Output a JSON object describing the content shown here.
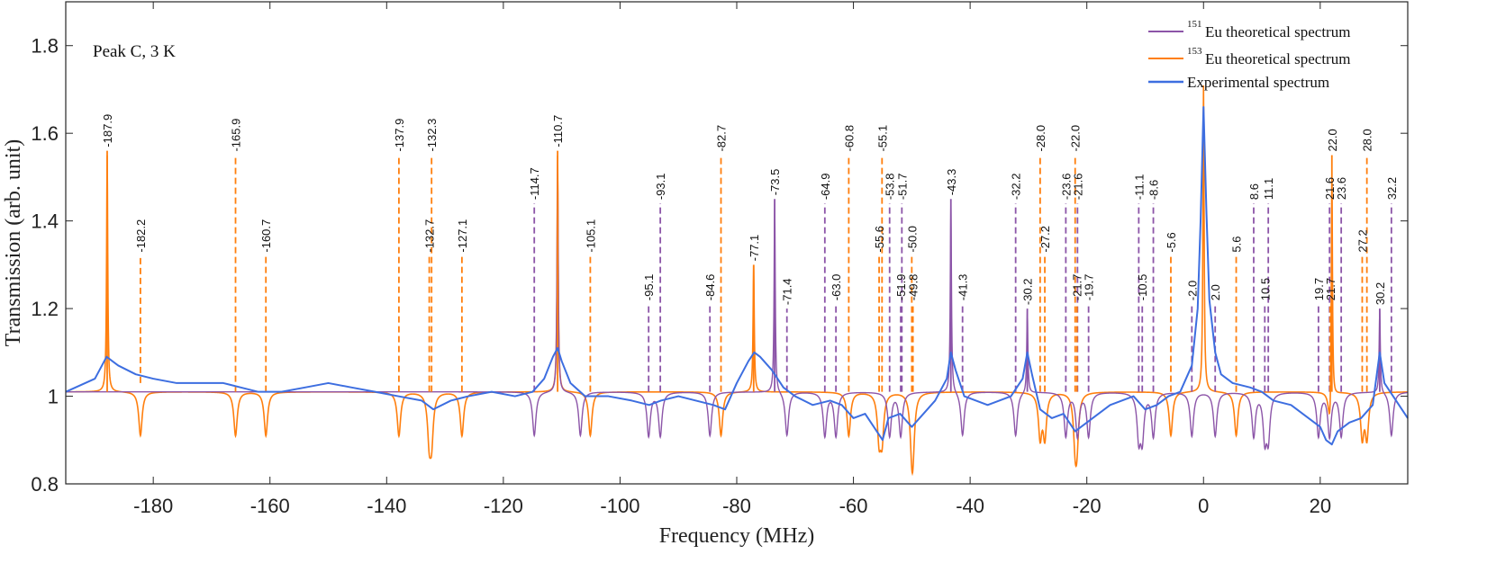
{
  "chart_data": {
    "type": "line",
    "xlabel": "Frequency (MHz)",
    "ylabel": "Transmission (arb. unit)",
    "xlim": [
      -195,
      35
    ],
    "ylim": [
      0.8,
      1.9
    ],
    "xticks": [
      -180,
      -160,
      -140,
      -120,
      -100,
      -80,
      -60,
      -40,
      -20,
      0,
      20
    ],
    "xtick_labels": [
      "-180",
      "-160",
      "-140",
      "-120",
      "-100",
      "-80",
      "-60",
      "-40",
      "-20",
      "0",
      "20"
    ],
    "yticks": [
      0.8,
      1,
      1.2,
      1.4,
      1.6,
      1.8
    ],
    "ytick_labels": [
      "0.8",
      "1",
      "1.2",
      "1.4",
      "1.6",
      "1.8"
    ],
    "annotation": "Peak C, 3 K",
    "baseline": 1.01,
    "legend": {
      "position": "top-right",
      "entries": [
        {
          "prefix": "151",
          "text": "Eu theoretical spectrum"
        },
        {
          "prefix": "153",
          "text": "Eu theoretical spectrum"
        },
        {
          "prefix": "",
          "text": "Experimental spectrum"
        }
      ]
    },
    "colors": {
      "eu151": "#8c55a8",
      "eu153": "#ff7f0e",
      "experimental": "#3d6ee0"
    },
    "series": [
      {
        "name": "151Eu theoretical spectrum",
        "peaks": [
          {
            "x": -110.7,
            "h": 1.54
          },
          {
            "x": -73.5,
            "h": 1.45
          },
          {
            "x": -43.3,
            "h": 1.45
          },
          {
            "x": -30.2,
            "h": 1.2
          },
          {
            "x": 30.2,
            "h": 1.2
          }
        ],
        "dips": [
          -114.7,
          -106.8,
          -95.1,
          -93.1,
          -84.6,
          -71.4,
          -64.9,
          -63.0,
          -53.8,
          -51.9,
          -41.3,
          -32.2,
          -23.6,
          -21.6,
          -19.7,
          -11.1,
          -10.5,
          -8.6,
          -2.0,
          2.0,
          8.6,
          10.5,
          11.1,
          19.7,
          21.6,
          23.6,
          32.2
        ]
      },
      {
        "name": "153Eu theoretical spectrum",
        "peaks": [
          {
            "x": -187.9,
            "h": 1.55
          },
          {
            "x": -110.7,
            "h": 1.55
          },
          {
            "x": -77.1,
            "h": 1.3
          },
          {
            "x": 0,
            "h": 1.71
          },
          {
            "x": 22.0,
            "h": 1.55
          }
        ],
        "dips": [
          -182.2,
          -165.9,
          -160.7,
          -137.9,
          -132.7,
          -132.3,
          -127.1,
          -105.1,
          -82.7,
          -60.8,
          -55.6,
          -55.1,
          -50.0,
          -49.8,
          -28.0,
          -27.2,
          -22.0,
          -21.7,
          -5.6,
          5.6,
          21.7,
          27.2,
          28.0
        ]
      },
      {
        "name": "Experimental spectrum",
        "x": [
          -195,
          -190,
          -188,
          -186,
          -183,
          -180,
          -176,
          -172,
          -168,
          -165,
          -162,
          -158,
          -154,
          -150,
          -146,
          -142,
          -138,
          -134,
          -132,
          -129,
          -126,
          -122,
          -118,
          -115,
          -113,
          -111.5,
          -110.7,
          -110,
          -108.5,
          -106,
          -102,
          -98,
          -95,
          -93,
          -90,
          -87,
          -84,
          -82,
          -80,
          -78,
          -77,
          -76,
          -74,
          -72,
          -70,
          -67,
          -64,
          -62,
          -60,
          -58,
          -56,
          -55,
          -54,
          -52,
          -50,
          -48,
          -46,
          -44,
          -43.3,
          -42.5,
          -41,
          -39,
          -37,
          -35,
          -33,
          -31,
          -30.2,
          -29.4,
          -28,
          -26,
          -24,
          -22,
          -20,
          -18,
          -16,
          -14,
          -12,
          -10,
          -8,
          -6,
          -4,
          -2,
          -1,
          -0.5,
          0,
          0.5,
          1,
          2,
          3,
          5,
          8,
          10,
          12,
          15,
          18,
          20,
          21,
          22,
          23,
          25,
          27,
          29,
          30.2,
          31,
          33,
          35
        ],
        "y": [
          1.01,
          1.04,
          1.09,
          1.07,
          1.05,
          1.04,
          1.03,
          1.03,
          1.03,
          1.02,
          1.01,
          1.01,
          1.02,
          1.03,
          1.02,
          1.01,
          1.0,
          0.99,
          0.97,
          0.99,
          1.0,
          1.01,
          1.0,
          1.01,
          1.04,
          1.09,
          1.11,
          1.08,
          1.03,
          1.0,
          1.0,
          0.99,
          0.98,
          0.99,
          1.0,
          0.99,
          0.98,
          0.97,
          1.03,
          1.08,
          1.1,
          1.09,
          1.06,
          1.02,
          1.0,
          0.98,
          0.99,
          0.98,
          0.95,
          0.96,
          0.92,
          0.9,
          0.95,
          0.96,
          0.93,
          0.96,
          0.99,
          1.04,
          1.1,
          1.06,
          1.0,
          0.99,
          0.98,
          0.99,
          1.0,
          1.04,
          1.1,
          1.05,
          0.97,
          0.95,
          0.96,
          0.92,
          0.94,
          0.96,
          0.98,
          0.99,
          1.0,
          0.97,
          0.98,
          1.0,
          1.01,
          1.07,
          1.2,
          1.4,
          1.66,
          1.42,
          1.22,
          1.1,
          1.05,
          1.03,
          1.02,
          1.01,
          0.99,
          0.98,
          0.95,
          0.93,
          0.9,
          0.89,
          0.92,
          0.94,
          0.95,
          0.98,
          1.1,
          1.03,
          0.99,
          0.95
        ]
      }
    ],
    "labels": [
      {
        "text": "-187.9",
        "x": -187.9,
        "y": 1.56,
        "color": "eu153",
        "style": "solid",
        "from": 1.01
      },
      {
        "text": "-182.2",
        "x": -182.2,
        "y": 1.32,
        "color": "eu153",
        "style": "dashed",
        "from": 1.03
      },
      {
        "text": "-165.9",
        "x": -165.9,
        "y": 1.55,
        "color": "eu153",
        "style": "dashed",
        "from": 1.01
      },
      {
        "text": "-160.7",
        "x": -160.7,
        "y": 1.32,
        "color": "eu153",
        "style": "dashed",
        "from": 1.01
      },
      {
        "text": "-137.9",
        "x": -137.9,
        "y": 1.55,
        "color": "eu153",
        "style": "dashed",
        "from": 1.01
      },
      {
        "text": "-132.3",
        "x": -132.3,
        "y": 1.55,
        "color": "eu153",
        "style": "dashed",
        "from": 1.01
      },
      {
        "text": "-132.7",
        "x": -132.7,
        "y": 1.32,
        "color": "eu153",
        "style": "dashed",
        "from": 1.01
      },
      {
        "text": "-127.1",
        "x": -127.1,
        "y": 1.32,
        "color": "eu153",
        "style": "dashed",
        "from": 1.01
      },
      {
        "text": "-114.7",
        "x": -114.7,
        "y": 1.44,
        "color": "eu151",
        "style": "dashed",
        "from": 1.01
      },
      {
        "text": "-110.7",
        "x": -110.7,
        "y": 1.56,
        "color": "eu153",
        "style": "solid",
        "from": 1.01
      },
      {
        "text": "-105.1",
        "x": -105.1,
        "y": 1.32,
        "color": "eu153",
        "style": "dashed",
        "from": 1.01
      },
      {
        "text": "-95.1",
        "x": -95.1,
        "y": 1.21,
        "color": "eu151",
        "style": "dashed",
        "from": 1.01
      },
      {
        "text": "-93.1",
        "x": -93.1,
        "y": 1.44,
        "color": "eu151",
        "style": "dashed",
        "from": 1.01
      },
      {
        "text": "-84.6",
        "x": -84.6,
        "y": 1.21,
        "color": "eu151",
        "style": "dashed",
        "from": 1.01
      },
      {
        "text": "-82.7",
        "x": -82.7,
        "y": 1.55,
        "color": "eu153",
        "style": "dashed",
        "from": 1.01
      },
      {
        "text": "-77.1",
        "x": -77.1,
        "y": 1.3,
        "color": "eu153",
        "style": "solid",
        "from": 1.01
      },
      {
        "text": "-73.5",
        "x": -73.5,
        "y": 1.45,
        "color": "eu151",
        "style": "solid",
        "from": 1.01
      },
      {
        "text": "-71.4",
        "x": -71.4,
        "y": 1.2,
        "color": "eu151",
        "style": "dashed",
        "from": 1.01
      },
      {
        "text": "-64.9",
        "x": -64.9,
        "y": 1.44,
        "color": "eu151",
        "style": "dashed",
        "from": 1.01
      },
      {
        "text": "-63.0",
        "x": -63.0,
        "y": 1.21,
        "color": "eu151",
        "style": "dashed",
        "from": 1.01
      },
      {
        "text": "-60.8",
        "x": -60.8,
        "y": 1.55,
        "color": "eu153",
        "style": "dashed",
        "from": 1.01
      },
      {
        "text": "-55.6",
        "x": -55.6,
        "y": 1.32,
        "color": "eu153",
        "style": "dashed",
        "from": 1.01
      },
      {
        "text": "-55.1",
        "x": -55.1,
        "y": 1.55,
        "color": "eu153",
        "style": "dashed",
        "from": 1.01
      },
      {
        "text": "-53.8",
        "x": -53.8,
        "y": 1.44,
        "color": "eu151",
        "style": "dashed",
        "from": 1.01
      },
      {
        "text": "-51.9",
        "x": -51.9,
        "y": 1.21,
        "color": "eu151",
        "style": "dashed",
        "from": 1.01
      },
      {
        "text": "-51.7",
        "x": -51.7,
        "y": 1.44,
        "color": "eu151",
        "style": "dashed",
        "from": 1.01
      },
      {
        "text": "-50.0",
        "x": -50.0,
        "y": 1.32,
        "color": "eu153",
        "style": "dashed",
        "from": 1.01
      },
      {
        "text": "-49.8",
        "x": -49.8,
        "y": 1.21,
        "color": "eu153",
        "style": "dashed",
        "from": 1.01
      },
      {
        "text": "-43.3",
        "x": -43.3,
        "y": 1.45,
        "color": "eu151",
        "style": "solid",
        "from": 1.01
      },
      {
        "text": "-41.3",
        "x": -41.3,
        "y": 1.21,
        "color": "eu151",
        "style": "dashed",
        "from": 1.01
      },
      {
        "text": "-32.2",
        "x": -32.2,
        "y": 1.44,
        "color": "eu151",
        "style": "dashed",
        "from": 1.01
      },
      {
        "text": "-30.2",
        "x": -30.2,
        "y": 1.2,
        "color": "eu151",
        "style": "solid",
        "from": 1.01
      },
      {
        "text": "-28.0",
        "x": -28.0,
        "y": 1.55,
        "color": "eu153",
        "style": "dashed",
        "from": 1.01
      },
      {
        "text": "-27.2",
        "x": -27.2,
        "y": 1.32,
        "color": "eu153",
        "style": "dashed",
        "from": 1.01
      },
      {
        "text": "-23.6",
        "x": -23.6,
        "y": 1.44,
        "color": "eu151",
        "style": "dashed",
        "from": 1.01
      },
      {
        "text": "-22.0",
        "x": -22.0,
        "y": 1.55,
        "color": "eu153",
        "style": "dashed",
        "from": 1.01
      },
      {
        "text": "-21.6",
        "x": -21.6,
        "y": 1.44,
        "color": "eu151",
        "style": "dashed",
        "from": 1.01
      },
      {
        "text": "-21.7",
        "x": -21.7,
        "y": 1.21,
        "color": "eu153",
        "style": "dashed",
        "from": 1.01
      },
      {
        "text": "-19.7",
        "x": -19.7,
        "y": 1.21,
        "color": "eu151",
        "style": "dashed",
        "from": 1.01
      },
      {
        "text": "-11.1",
        "x": -11.1,
        "y": 1.44,
        "color": "eu151",
        "style": "dashed",
        "from": 1.01
      },
      {
        "text": "-10.5",
        "x": -10.5,
        "y": 1.21,
        "color": "eu151",
        "style": "dashed",
        "from": 1.01
      },
      {
        "text": "-8.6",
        "x": -8.6,
        "y": 1.44,
        "color": "eu151",
        "style": "dashed",
        "from": 1.01
      },
      {
        "text": "-5.6",
        "x": -5.6,
        "y": 1.32,
        "color": "eu153",
        "style": "dashed",
        "from": 1.01
      },
      {
        "text": "-2.0",
        "x": -2.0,
        "y": 1.21,
        "color": "eu151",
        "style": "dashed",
        "from": 1.01
      },
      {
        "text": "2.0",
        "x": 2.0,
        "y": 1.21,
        "color": "eu151",
        "style": "dashed",
        "from": 1.01
      },
      {
        "text": "5.6",
        "x": 5.6,
        "y": 1.32,
        "color": "eu153",
        "style": "dashed",
        "from": 1.01
      },
      {
        "text": "8.6",
        "x": 8.6,
        "y": 1.44,
        "color": "eu151",
        "style": "dashed",
        "from": 1.01
      },
      {
        "text": "10.5",
        "x": 10.5,
        "y": 1.21,
        "color": "eu151",
        "style": "dashed",
        "from": 1.01
      },
      {
        "text": "11.1",
        "x": 11.1,
        "y": 1.44,
        "color": "eu151",
        "style": "dashed",
        "from": 1.01
      },
      {
        "text": "19.7",
        "x": 19.7,
        "y": 1.21,
        "color": "eu151",
        "style": "dashed",
        "from": 1.01
      },
      {
        "text": "21.6",
        "x": 21.6,
        "y": 1.44,
        "color": "eu151",
        "style": "dashed",
        "from": 1.01
      },
      {
        "text": "21.7",
        "x": 21.7,
        "y": 1.21,
        "color": "eu153",
        "style": "dashed",
        "from": 1.01
      },
      {
        "text": "22.0",
        "x": 22.0,
        "y": 1.55,
        "color": "eu153",
        "style": "solid",
        "from": 1.01
      },
      {
        "text": "23.6",
        "x": 23.6,
        "y": 1.44,
        "color": "eu151",
        "style": "dashed",
        "from": 1.01
      },
      {
        "text": "27.2",
        "x": 27.2,
        "y": 1.32,
        "color": "eu153",
        "style": "dashed",
        "from": 1.01
      },
      {
        "text": "28.0",
        "x": 28.0,
        "y": 1.55,
        "color": "eu153",
        "style": "dashed",
        "from": 1.01
      },
      {
        "text": "30.2",
        "x": 30.2,
        "y": 1.2,
        "color": "eu151",
        "style": "solid",
        "from": 1.01
      },
      {
        "text": "32.2",
        "x": 32.2,
        "y": 1.44,
        "color": "eu151",
        "style": "dashed",
        "from": 1.01
      }
    ]
  }
}
